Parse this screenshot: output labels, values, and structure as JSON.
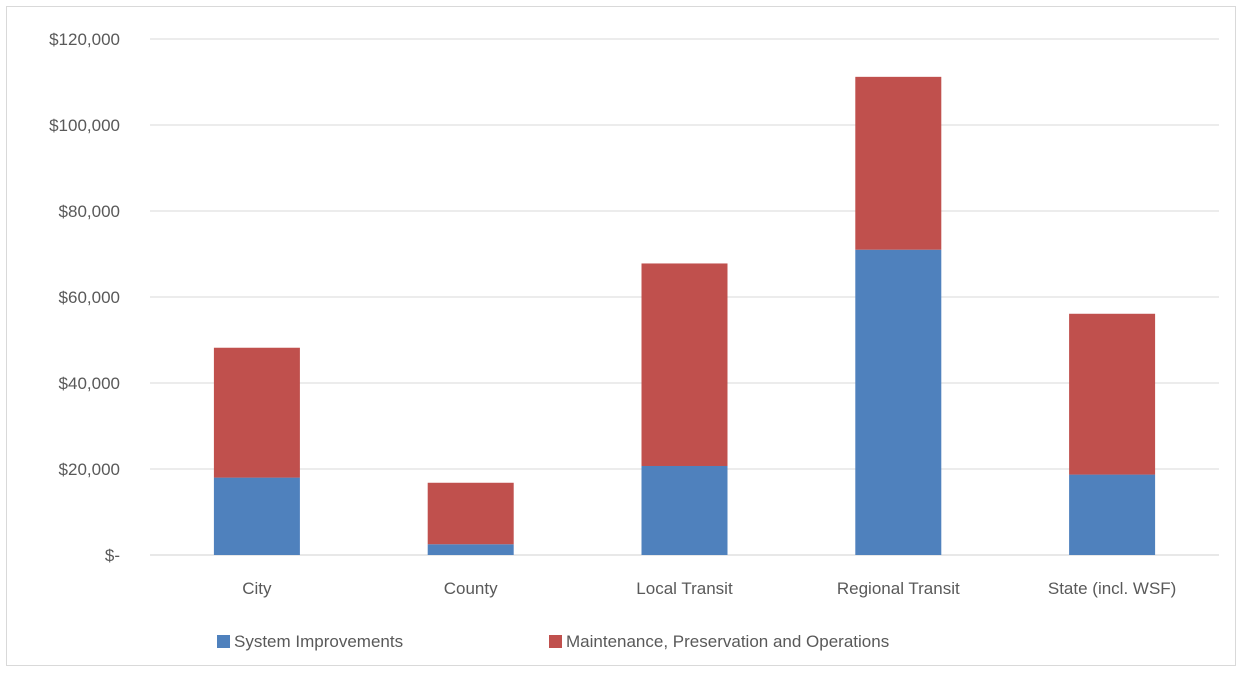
{
  "chart_data": {
    "type": "bar",
    "stacked": true,
    "title": "",
    "xlabel": "",
    "ylabel": "",
    "categories": [
      "City",
      "County",
      "Local Transit",
      "Regional Transit",
      "State (incl. WSF)"
    ],
    "series": [
      {
        "name": "System Improvements",
        "color": "#4F81BD",
        "values": [
          18000,
          2500,
          20700,
          71000,
          18700
        ]
      },
      {
        "name": "Maintenance, Preservation and Operations",
        "color": "#C0504D",
        "values": [
          30200,
          14300,
          47100,
          40200,
          37400
        ]
      }
    ],
    "ylim": [
      0,
      120000
    ],
    "yticks": [
      0,
      20000,
      40000,
      60000,
      80000,
      100000,
      120000
    ],
    "ytick_labels": [
      "$-",
      "$20,000",
      "$40,000",
      "$60,000",
      "$80,000",
      "$100,000",
      "$120,000"
    ],
    "grid": true,
    "legend_position": "bottom"
  }
}
